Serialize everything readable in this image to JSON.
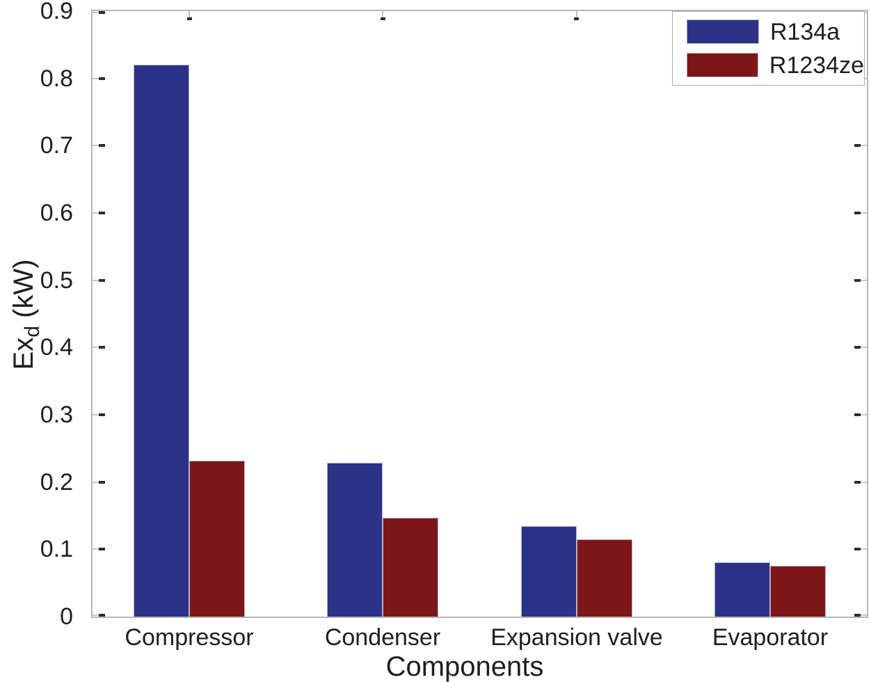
{
  "figure_title": "",
  "axes": {
    "xlabel": "Components",
    "ylabel_base": "Ex",
    "ylabel_sub": "d",
    "ylabel_unit": " (kW)"
  },
  "colors": {
    "r134a_blue": "#2B3287",
    "r1234ze_red": "#7D1618",
    "axis_box_gray": "#b5b5b5",
    "tick_dark": "#2d2d2d",
    "text": "#1f1f1f"
  },
  "legend": {
    "position": "top-right",
    "items": [
      {
        "label": "R134a",
        "color": "#2B3287"
      },
      {
        "label": "R1234ze",
        "color": "#7D1618"
      }
    ]
  },
  "chart_data": {
    "type": "bar",
    "categories": [
      "Compressor",
      "Condenser",
      "Expansion valve",
      "Evaporator"
    ],
    "series": [
      {
        "name": "R134a",
        "color": "#2B3287",
        "values": [
          0.82,
          0.229,
          0.134,
          0.081
        ]
      },
      {
        "name": "R1234ze",
        "color": "#7D1618",
        "values": [
          0.232,
          0.147,
          0.115,
          0.076
        ]
      }
    ],
    "title": "",
    "xlabel": "Components",
    "ylabel": "Ex_d (kW)",
    "ylim": [
      0,
      0.9
    ],
    "ytick_step": 0.1,
    "ytick_labels": [
      "0",
      "0.1",
      "0.2",
      "0.3",
      "0.4",
      "0.5",
      "0.6",
      "0.7",
      "0.8",
      "0.9"
    ],
    "grid": false,
    "legend_position": "top-right",
    "box": true
  }
}
